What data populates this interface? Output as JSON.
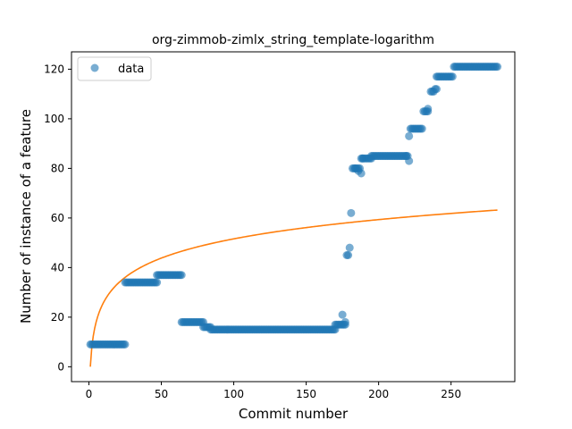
{
  "chart_data": {
    "type": "scatter",
    "title": "org-zimmob-zimlx_string_template-logarithm",
    "xlabel": "Commit number",
    "ylabel": "Number of instance of a feature",
    "xlim": [
      -12,
      294
    ],
    "ylim": [
      -6,
      127
    ],
    "xticks": [
      0,
      50,
      100,
      150,
      200,
      250
    ],
    "yticks": [
      0,
      20,
      40,
      60,
      80,
      100,
      120
    ],
    "grid": false,
    "legend": {
      "position": "top-left",
      "entries": [
        {
          "label": "data",
          "marker": "circle",
          "color": "#1f77b4"
        }
      ]
    },
    "series": [
      {
        "name": "data",
        "kind": "scatter",
        "color": "#1f77b4",
        "opacity": 0.6,
        "segments": [
          {
            "x_start": 1,
            "x_end": 25,
            "y": 9
          },
          {
            "x_start": 25,
            "x_end": 47,
            "y": 34
          },
          {
            "x_start": 47,
            "x_end": 64,
            "y": 37
          },
          {
            "x_start": 64,
            "x_end": 79,
            "y": 18
          },
          {
            "x_start": 79,
            "x_end": 84,
            "y": 16
          },
          {
            "x_start": 84,
            "x_end": 170,
            "y": 15
          },
          {
            "x_start": 170,
            "x_end": 177,
            "y": 17
          },
          {
            "x_start": 182,
            "x_end": 187,
            "y": 80
          },
          {
            "x_start": 188,
            "x_end": 195,
            "y": 84
          },
          {
            "x_start": 195,
            "x_end": 220,
            "y": 85
          },
          {
            "x_start": 222,
            "x_end": 230,
            "y": 96
          },
          {
            "x_start": 231,
            "x_end": 234,
            "y": 103
          },
          {
            "x_start": 236,
            "x_end": 238,
            "y": 111
          },
          {
            "x_start": 239,
            "x_end": 240,
            "y": 112
          },
          {
            "x_start": 240,
            "x_end": 251,
            "y": 117
          },
          {
            "x_start": 252,
            "x_end": 282,
            "y": 121
          }
        ],
        "points": [
          {
            "x": 175,
            "y": 21
          },
          {
            "x": 177,
            "y": 18
          },
          {
            "x": 178,
            "y": 45
          },
          {
            "x": 179,
            "y": 45
          },
          {
            "x": 180,
            "y": 48
          },
          {
            "x": 181,
            "y": 62
          },
          {
            "x": 184,
            "y": 80
          },
          {
            "x": 186,
            "y": 79
          },
          {
            "x": 188,
            "y": 78
          },
          {
            "x": 189,
            "y": 84
          },
          {
            "x": 219,
            "y": 85
          },
          {
            "x": 221,
            "y": 83
          },
          {
            "x": 221,
            "y": 93
          },
          {
            "x": 234,
            "y": 104
          }
        ]
      },
      {
        "name": "",
        "kind": "line",
        "color": "#ff7f0e",
        "function": "11.2*ln(x)",
        "x_range": [
          1,
          282
        ]
      }
    ]
  }
}
